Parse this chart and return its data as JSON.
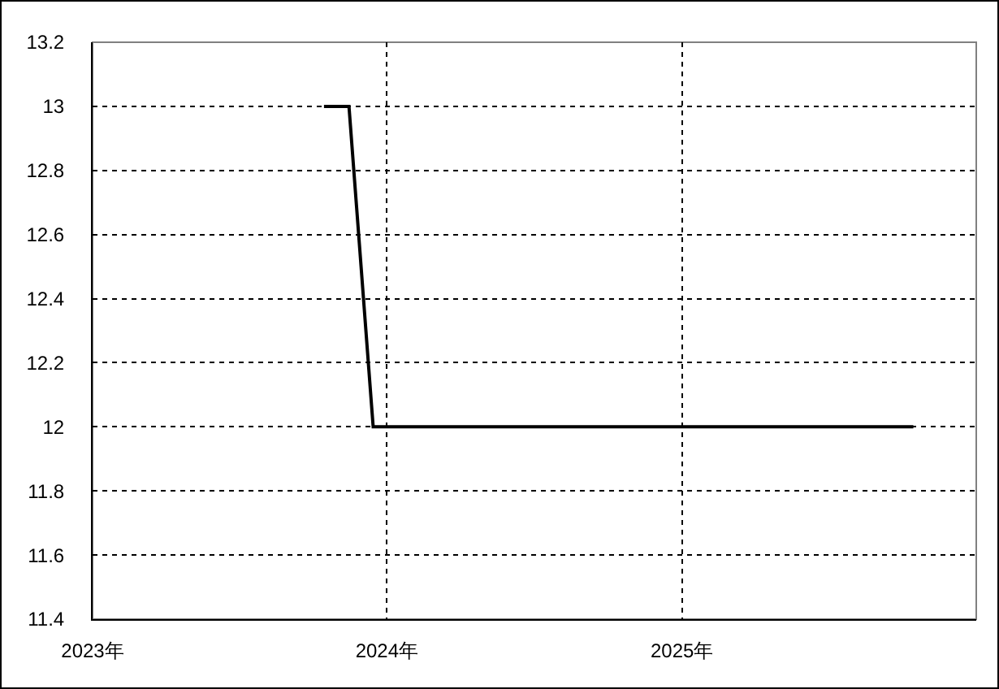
{
  "chart_data": {
    "type": "line",
    "x": [
      "2023-10-15",
      "2023-11-15",
      "2023-12-15",
      "2025-10-15"
    ],
    "values": [
      13,
      13,
      12,
      12
    ],
    "color": "#000000",
    "line_style": "solid",
    "xlim": [
      "2023-01-01",
      "2026-01-01"
    ],
    "xticks": [
      {
        "value": "2023-01-01",
        "label": "2023年"
      },
      {
        "value": "2024-01-01",
        "label": "2024年"
      },
      {
        "value": "2025-01-01",
        "label": "2025年"
      }
    ],
    "ylim": [
      11.4,
      13.2
    ],
    "yticks": [
      11.4,
      11.6,
      11.8,
      12,
      12.2,
      12.4,
      12.6,
      12.8,
      13,
      13.2
    ],
    "grid": true
  }
}
